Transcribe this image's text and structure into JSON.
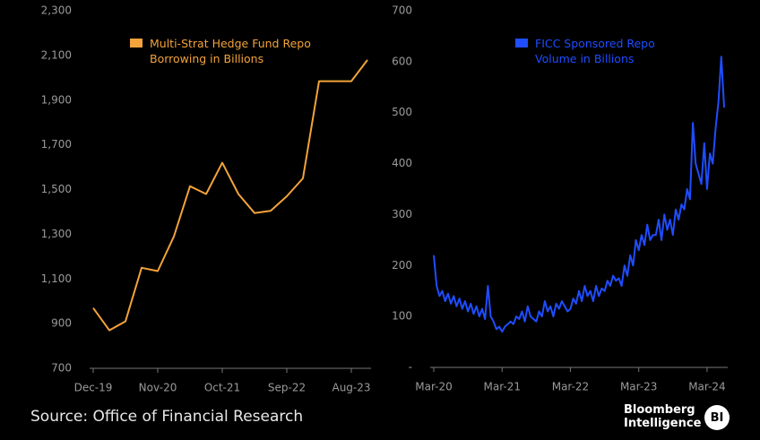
{
  "chart_data": [
    {
      "type": "line",
      "categories": [
        "Dec-19",
        null,
        null,
        null,
        "Nov-20",
        null,
        null,
        null,
        "Oct-21",
        null,
        null,
        null,
        "Sep-22",
        null,
        null,
        null,
        "Aug-23",
        null
      ],
      "series": [
        {
          "name": "Multi-Strat Hedge Fund Repo Borrowing in Billions",
          "color": "#f2a33a",
          "values": [
            970,
            870,
            910,
            1150,
            1135,
            1290,
            1515,
            1480,
            1620,
            1480,
            1395,
            1405,
            1470,
            1550,
            1985,
            1985,
            1985,
            2080
          ]
        }
      ],
      "ylim": [
        700,
        2300
      ],
      "yticks": [
        700,
        900,
        {
          "value": 1100,
          "label": "1,100"
        },
        {
          "value": 1300,
          "label": "1,300"
        },
        {
          "value": 1500,
          "label": "1,500"
        },
        {
          "value": 1700,
          "label": "1,700"
        },
        {
          "value": 1900,
          "label": "1,900"
        },
        {
          "value": 2100,
          "label": "2,100"
        },
        {
          "value": 2300,
          "label": "2,300"
        }
      ]
    },
    {
      "type": "line",
      "categories": [
        "Mar-20",
        null,
        null,
        null,
        null,
        null,
        null,
        null,
        null,
        null,
        null,
        null,
        null,
        null,
        null,
        null,
        null,
        null,
        null,
        null,
        null,
        null,
        null,
        null,
        "Mar-21",
        null,
        null,
        null,
        null,
        null,
        null,
        null,
        null,
        null,
        null,
        null,
        null,
        null,
        null,
        null,
        null,
        null,
        null,
        null,
        null,
        null,
        null,
        null,
        "Mar-22",
        null,
        null,
        null,
        null,
        null,
        null,
        null,
        null,
        null,
        null,
        null,
        null,
        null,
        null,
        null,
        null,
        null,
        null,
        null,
        null,
        null,
        null,
        null,
        "Mar-23",
        null,
        null,
        null,
        null,
        null,
        null,
        null,
        null,
        null,
        null,
        null,
        null,
        null,
        null,
        null,
        null,
        null,
        null,
        null,
        null,
        null,
        null,
        null,
        "Mar-24",
        null,
        null,
        null,
        null,
        null,
        null
      ],
      "series": [
        {
          "name": "FICC Sponsored Repo Volume in Billions",
          "color": "#1f4dff",
          "values": [
            220,
            160,
            140,
            150,
            130,
            145,
            125,
            140,
            120,
            135,
            115,
            130,
            110,
            125,
            105,
            120,
            100,
            115,
            95,
            160,
            100,
            90,
            75,
            80,
            70,
            80,
            85,
            90,
            85,
            100,
            95,
            110,
            90,
            120,
            100,
            95,
            90,
            110,
            100,
            130,
            110,
            120,
            100,
            125,
            115,
            130,
            120,
            110,
            115,
            135,
            125,
            150,
            130,
            160,
            140,
            150,
            130,
            160,
            140,
            155,
            150,
            170,
            160,
            180,
            170,
            175,
            160,
            200,
            180,
            220,
            200,
            250,
            230,
            260,
            240,
            280,
            250,
            260,
            260,
            290,
            250,
            300,
            270,
            290,
            260,
            310,
            290,
            320,
            310,
            350,
            330,
            480,
            400,
            380,
            360,
            440,
            350,
            420,
            400,
            470,
            520,
            610,
            510
          ]
        }
      ],
      "ylim": [
        0,
        700
      ],
      "yticks": [
        {
          "value": 0,
          "label": "-"
        },
        100,
        200,
        300,
        400,
        500,
        600,
        700
      ]
    }
  ],
  "source": "Source: Office of Financial Research",
  "brand": {
    "line1": "Bloomberg",
    "line2": "Intelligence",
    "logo": "BI"
  }
}
